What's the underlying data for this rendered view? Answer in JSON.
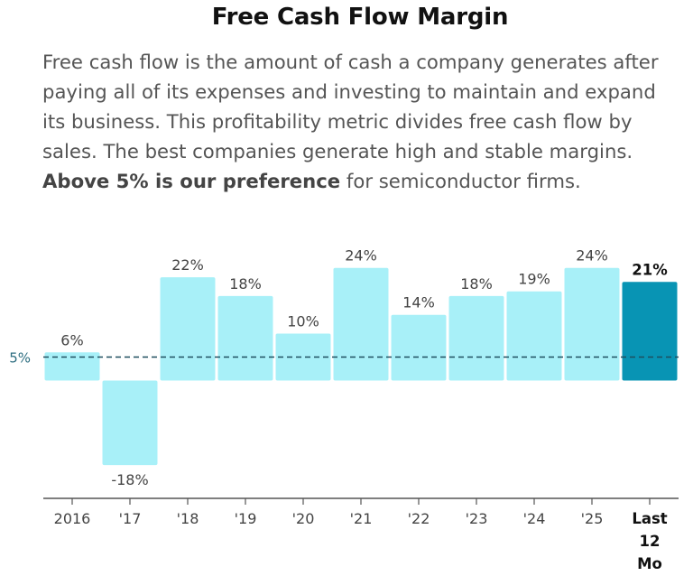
{
  "title": "Free Cash Flow Margin",
  "description": {
    "before": "Free cash flow is the amount of cash a company generates after paying all of its expenses and investing to maintain and expand its business. This profitability metric divides free cash flow by sales. The best companies generate high and stable margins. ",
    "bold": "Above 5% is our preference",
    "after": " for semiconductor firms."
  },
  "chart_data": {
    "type": "bar",
    "title": "Free Cash Flow Margin",
    "xlabel": "",
    "ylabel": "",
    "unit": "%",
    "categories": [
      "2016",
      "'17",
      "'18",
      "'19",
      "'20",
      "'21",
      "'22",
      "'23",
      "'24",
      "'25",
      "Last 12 Mo"
    ],
    "values": [
      6,
      -18,
      22,
      18,
      10,
      24,
      14,
      18,
      19,
      24,
      21
    ],
    "value_labels": [
      "6%",
      "-18%",
      "22%",
      "18%",
      "10%",
      "24%",
      "14%",
      "18%",
      "19%",
      "24%",
      "21%"
    ],
    "highlight_index": 10,
    "reference_line": {
      "value": 5,
      "label": "5%"
    },
    "ylim": [
      -26,
      35
    ],
    "colors": {
      "bar": "#a8f0f8",
      "highlight": "#0894b4",
      "reference": "#1e4e5e",
      "reference_label": "#2e6e80",
      "label": "#444444",
      "highlight_label": "#111111",
      "axis": "#555555"
    }
  }
}
